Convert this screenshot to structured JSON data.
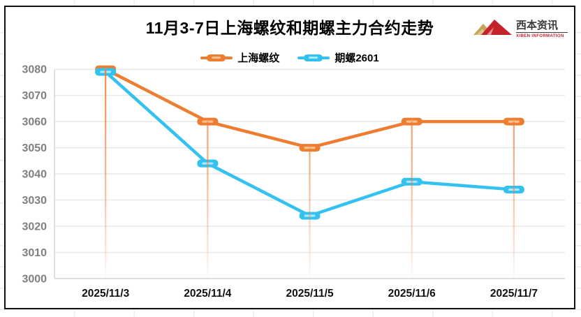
{
  "logo": {
    "name": "西本资讯",
    "subtitle": "XIBEN INFORMATION",
    "mountain_left_color": "#c9a257",
    "mountain_right_color": "#c5232c"
  },
  "chart_data": {
    "type": "line",
    "title": "11月3-7日上海螺纹和期螺主力合约走势",
    "categories": [
      "2025/11/3",
      "2025/11/4",
      "2025/11/5",
      "2025/11/6",
      "2025/11/7"
    ],
    "series": [
      {
        "name": "上海螺纹",
        "color": "#ED7D31",
        "marker_inner": "#F9BE8E",
        "values": [
          3080,
          3060,
          3050,
          3060,
          3060
        ]
      },
      {
        "name": "期螺2601",
        "color": "#33C1F0",
        "marker_inner": "#A9E8FB",
        "values": [
          3079,
          3044,
          3024,
          3037,
          3034
        ]
      }
    ],
    "ylim": [
      3000,
      3080
    ],
    "ytick_step": 10,
    "grid": true,
    "legend_position": "top",
    "drop_lines": true,
    "drop_line_color": "#F07B35",
    "gridline_color": "#E8E8E8",
    "axis_line_color": "#D6D6D6",
    "y_label_color": "#808080",
    "x_label_color": "#111111"
  }
}
